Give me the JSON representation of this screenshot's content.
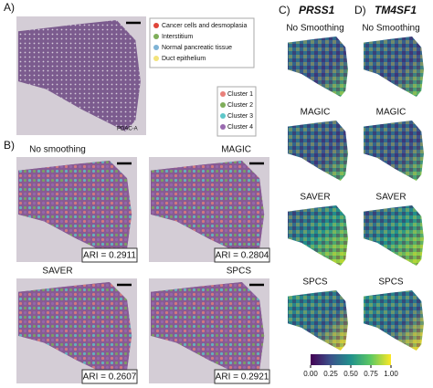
{
  "panel_a": {
    "label": "A)",
    "legend": [
      "Cancer cells and desmoplasia",
      "Interstitium",
      "Normal pancreatic tissue",
      "Duct epithelium"
    ],
    "clusters": [
      "Cluster 1",
      "Cluster 2",
      "Cluster 3",
      "Cluster 4"
    ],
    "sample": "PDAC-A"
  },
  "panel_b": {
    "label": "B)",
    "images": [
      {
        "title": "No smoothing",
        "ari": "ARI = 0.2911"
      },
      {
        "title": "MAGIC",
        "ari": "ARI = 0.2804"
      },
      {
        "title": "SAVER",
        "ari": "ARI = 0.2607"
      },
      {
        "title": "SPCS",
        "ari": "ARI = 0.2921"
      }
    ]
  },
  "panel_c": {
    "label": "C)",
    "gene": "PRSS1",
    "rows": [
      "No Smoothing",
      "MAGIC",
      "SAVER",
      "SPCS"
    ]
  },
  "panel_d": {
    "label": "D)",
    "gene": "TM4SF1",
    "rows": [
      "No Smoothing",
      "MAGIC",
      "SAVER",
      "SPCS"
    ]
  },
  "colorbar": {
    "lim": [
      0,
      1
    ],
    "ticks": [
      {
        "value": 0,
        "label": "0.00"
      },
      {
        "value": 0.25,
        "label": "0.25"
      },
      {
        "value": 0.5,
        "label": "0.50"
      },
      {
        "value": 0.75,
        "label": "0.75"
      },
      {
        "value": 1,
        "label": "1.00"
      }
    ]
  }
}
